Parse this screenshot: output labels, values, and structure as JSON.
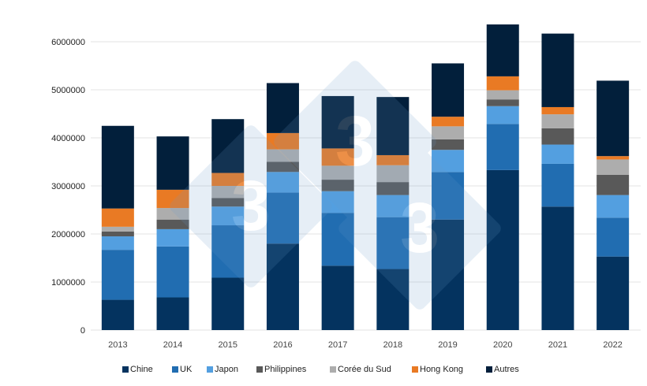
{
  "chart_data": {
    "type": "bar",
    "stacked": true,
    "title": "",
    "xlabel": "",
    "ylabel": "",
    "ylim": [
      0,
      6500000
    ],
    "yticks": [
      0,
      1000000,
      2000000,
      3000000,
      4000000,
      5000000,
      6000000
    ],
    "ytick_labels": [
      "0",
      "1000000",
      "2000000",
      "3000000",
      "4000000",
      "5000000",
      "6000000"
    ],
    "grid": true,
    "legend_position": "bottom",
    "categories": [
      "2013",
      "2014",
      "2015",
      "2016",
      "2017",
      "2018",
      "2019",
      "2020",
      "2021",
      "2022"
    ],
    "series": [
      {
        "name": "Chine",
        "color": "#04335f",
        "values": [
          630000,
          680000,
          1090000,
          1800000,
          1340000,
          1270000,
          2300000,
          3330000,
          2570000,
          1530000
        ]
      },
      {
        "name": "UK",
        "color": "#216db1",
        "values": [
          1040000,
          1060000,
          1090000,
          1060000,
          1100000,
          1080000,
          990000,
          960000,
          890000,
          810000
        ]
      },
      {
        "name": "Japon",
        "color": "#539fe0",
        "values": [
          280000,
          360000,
          390000,
          430000,
          450000,
          460000,
          460000,
          370000,
          400000,
          470000
        ]
      },
      {
        "name": "Philippines",
        "color": "#595959",
        "values": [
          100000,
          200000,
          180000,
          210000,
          240000,
          270000,
          220000,
          140000,
          340000,
          420000
        ]
      },
      {
        "name": "Corée du Sud",
        "color": "#adadad",
        "values": [
          100000,
          240000,
          250000,
          260000,
          290000,
          350000,
          270000,
          190000,
          290000,
          320000
        ]
      },
      {
        "name": "Hong Kong",
        "color": "#e97a24",
        "values": [
          380000,
          380000,
          270000,
          340000,
          360000,
          210000,
          200000,
          290000,
          150000,
          70000
        ]
      },
      {
        "name": "Autres",
        "color": "#021f3b",
        "values": [
          1720000,
          1110000,
          1120000,
          1040000,
          1090000,
          1210000,
          1110000,
          1080000,
          1530000,
          1570000
        ]
      }
    ]
  },
  "watermark": "3"
}
